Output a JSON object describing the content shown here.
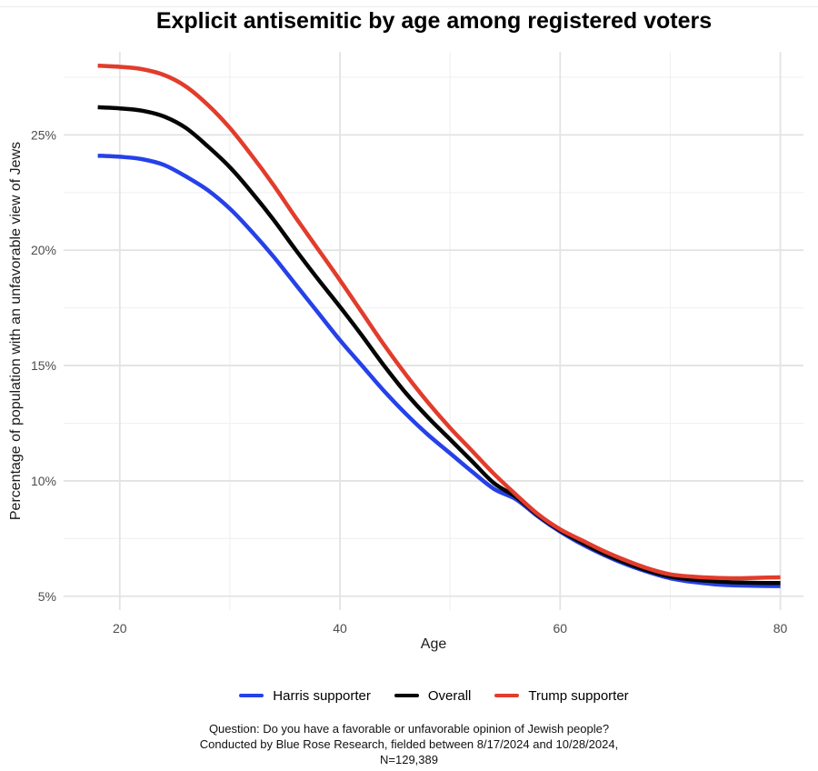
{
  "title": "Explicit antisemitic by age among registered voters",
  "chart_data": {
    "type": "line",
    "title": "Explicit antisemitic by age among registered voters",
    "xlabel": "Age",
    "ylabel": "Percentage of population with an unfavorable view of Jews",
    "xlim": [
      14.9,
      82.1
    ],
    "ylim": [
      4.4,
      28.6
    ],
    "x_ticks": [
      20,
      40,
      60,
      80
    ],
    "x_minor": [
      30,
      50,
      70
    ],
    "y_ticks": [
      5,
      10,
      15,
      20,
      25
    ],
    "y_minor": [
      7.5,
      12.5,
      17.5,
      22.5,
      27.5
    ],
    "y_tick_suffix": "%",
    "grid": true,
    "legend_position": "bottom",
    "x": [
      18,
      20,
      22,
      24,
      26,
      28,
      30,
      32,
      34,
      36,
      38,
      40,
      42,
      44,
      46,
      48,
      50,
      52,
      54,
      56,
      58,
      60,
      62,
      64,
      66,
      68,
      70,
      72,
      74,
      76,
      78,
      80
    ],
    "series": [
      {
        "name": "Harris supporter",
        "color": "#2641e8",
        "values": [
          24.1,
          24.05,
          23.95,
          23.7,
          23.2,
          22.6,
          21.8,
          20.8,
          19.7,
          18.5,
          17.3,
          16.1,
          15.0,
          13.9,
          12.9,
          12.0,
          11.2,
          10.4,
          9.65,
          9.2,
          8.45,
          7.8,
          7.25,
          6.78,
          6.38,
          6.05,
          5.78,
          5.62,
          5.52,
          5.47,
          5.45,
          5.44
        ]
      },
      {
        "name": "Overall",
        "color": "#050505",
        "values": [
          26.2,
          26.15,
          26.05,
          25.8,
          25.3,
          24.5,
          23.6,
          22.5,
          21.3,
          20.0,
          18.75,
          17.55,
          16.3,
          15.0,
          13.8,
          12.75,
          11.8,
          10.85,
          9.9,
          9.3,
          8.5,
          7.85,
          7.32,
          6.84,
          6.44,
          6.1,
          5.85,
          5.72,
          5.65,
          5.6,
          5.58,
          5.57
        ]
      },
      {
        "name": "Trump supporter",
        "color": "#e23c2c",
        "values": [
          28.0,
          27.95,
          27.85,
          27.6,
          27.1,
          26.3,
          25.3,
          24.1,
          22.8,
          21.4,
          20.05,
          18.7,
          17.3,
          15.9,
          14.6,
          13.4,
          12.3,
          11.3,
          10.3,
          9.4,
          8.55,
          7.9,
          7.42,
          6.95,
          6.55,
          6.2,
          5.95,
          5.85,
          5.8,
          5.78,
          5.8,
          5.82
        ]
      }
    ]
  },
  "caption": {
    "line1": "Question: Do you have a favorable or unfavorable opinion of Jewish people?",
    "line2": "Conducted by Blue Rose Research, fielded between 8/17/2024 and 10/28/2024,",
    "line3": "N=129,389"
  },
  "colors": {
    "background": "#ffffff",
    "grid_major": "#e3e3e3",
    "grid_minor": "#f0f0f0",
    "tick_label": "#4d4d4d"
  }
}
